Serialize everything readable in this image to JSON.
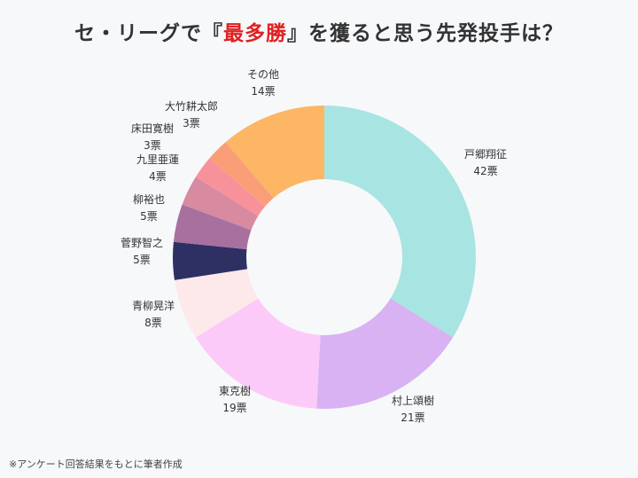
{
  "title": {
    "prefix": "セ・リーグで『",
    "highlight": "最多勝",
    "suffix": "』を獲ると思う先発投手は？"
  },
  "footnote": "※アンケート回答結果をもとに筆者作成",
  "chart_data": {
    "type": "pie",
    "donut": true,
    "unit": "票",
    "slices": [
      {
        "label": "戸郷翔征",
        "value": 42,
        "color": "#a8e4e2"
      },
      {
        "label": "村上頌樹",
        "value": 21,
        "color": "#d8b2f2"
      },
      {
        "label": "東克樹",
        "value": 19,
        "color": "#fccaf8"
      },
      {
        "label": "青柳晃洋",
        "value": 8,
        "color": "#fde9ea"
      },
      {
        "label": "菅野智之",
        "value": 5,
        "color": "#2e3064"
      },
      {
        "label": "柳裕也",
        "value": 5,
        "color": "#a8709f"
      },
      {
        "label": "九里亜蓮",
        "value": 4,
        "color": "#d78aa0"
      },
      {
        "label": "床田寛樹",
        "value": 3,
        "color": "#f7919a"
      },
      {
        "label": "大竹耕太郎",
        "value": 3,
        "color": "#fa9e78"
      },
      {
        "label": "その他",
        "value": 14,
        "color": "#fdb664"
      }
    ]
  }
}
